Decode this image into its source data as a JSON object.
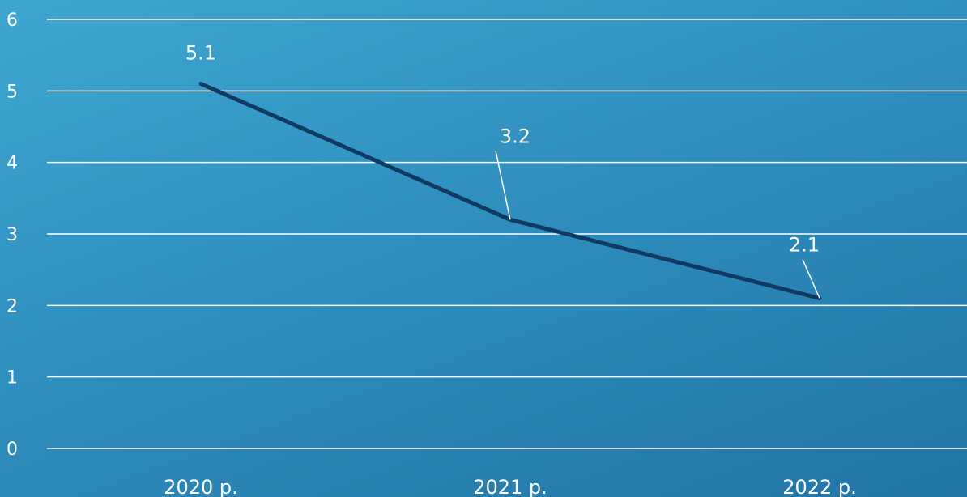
{
  "chart_data": {
    "type": "line",
    "categories": [
      "2020 р.",
      "2021 р.",
      "2022 р."
    ],
    "series": [
      {
        "values": [
          5.1,
          3.2,
          2.1
        ],
        "data_labels": [
          "5.1",
          "3.2",
          "2.1"
        ]
      }
    ],
    "ylim": [
      0,
      6
    ],
    "yticks": [
      "0",
      "1",
      "2",
      "3",
      "4",
      "5",
      "6"
    ],
    "grid": true,
    "legend": "none",
    "line_color": "#0f3a64",
    "gridline_color": "#ffffff"
  }
}
